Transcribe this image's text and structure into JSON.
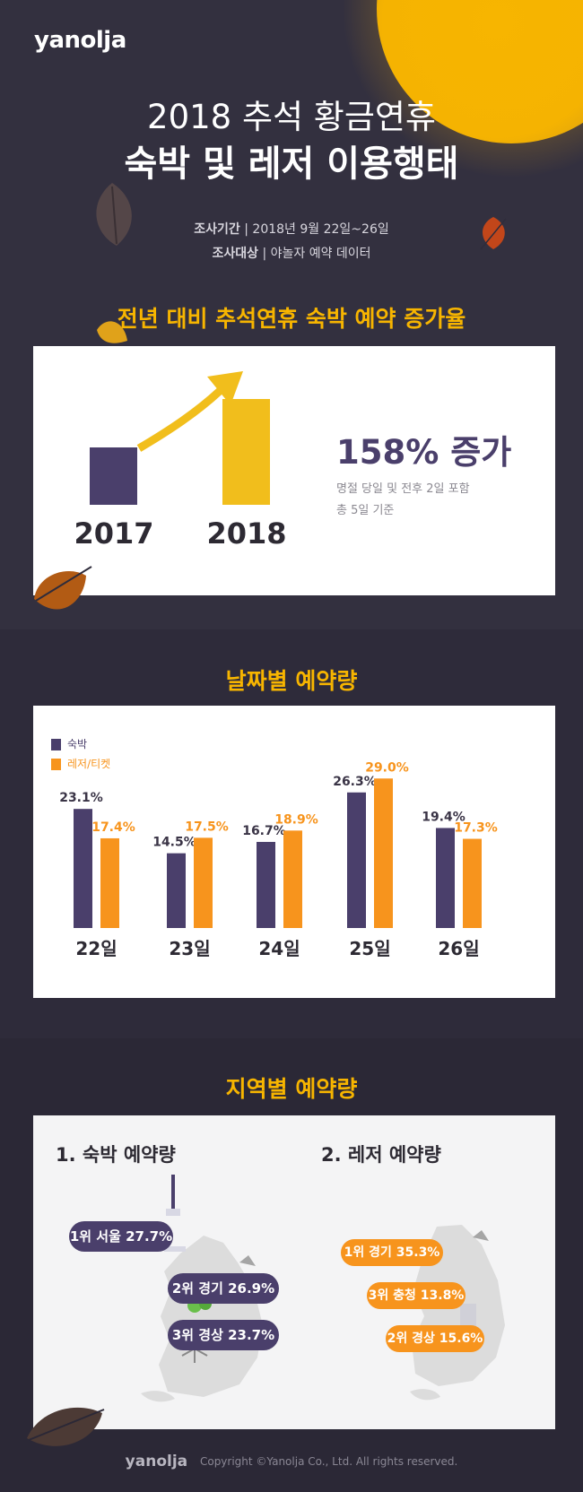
{
  "brand": {
    "logo": "yanolja"
  },
  "header": {
    "title_line1": "2018 추석 황금연휴",
    "title_line2": "숙박 및 레저 이용행태",
    "period_label": "조사기간",
    "period_value": "| 2018년 9월 22일~26일",
    "target_label": "조사대상",
    "target_value": "| 야놀자 예약 데이터"
  },
  "section1": {
    "title": "전년 대비 추석연휴 숙박 예약 증가율",
    "headline": "158% 증가",
    "note_line1": "명절 당일 및 전후 2일 포함",
    "note_line2": "총 5일 기준"
  },
  "section2": {
    "title": "날짜별 예약량"
  },
  "section3": {
    "title": "지역별 예약량",
    "stay_title": "1. 숙박 예약량",
    "leisure_title": "2. 레저 예약량",
    "stay_ranks": [
      "1위 서울 27.7%",
      "2위 경기 26.9%",
      "3위 경상 23.7%"
    ],
    "leisure_ranks": [
      "1위 경기 35.3%",
      "3위 충청 13.8%",
      "2위 경상 15.6%"
    ]
  },
  "footer": {
    "logo": "yanolja",
    "copyright": "Copyright ©Yanolja Co., Ltd. All rights reserved."
  },
  "colors": {
    "background": "#33303f",
    "accent_yellow": "#f7b500",
    "stay_purple": "#4a3f6b",
    "leisure_orange": "#f7941d",
    "bar_2018": "#f1be1c"
  },
  "chart_data": [
    {
      "type": "bar",
      "categories": [
        "2017",
        "2018"
      ],
      "values": [
        100,
        258
      ],
      "title": "전년 대비 추석연휴 숙박 예약 증가율",
      "annotation": "158% 증가"
    },
    {
      "type": "bar",
      "title": "날짜별 예약량",
      "categories": [
        "22일",
        "23일",
        "24일",
        "25일",
        "26일"
      ],
      "series": [
        {
          "name": "숙박",
          "values": [
            23.1,
            14.5,
            16.7,
            26.3,
            19.4
          ],
          "labels": [
            "23.1%",
            "14.5%",
            "16.7%",
            "26.3%",
            "19.4%"
          ],
          "color": "#4a3f6b"
        },
        {
          "name": "레저/티켓",
          "values": [
            17.4,
            17.5,
            18.9,
            29.0,
            17.3
          ],
          "labels": [
            "17.4%",
            "17.5%",
            "18.9%",
            "29.0%",
            "17.3%"
          ],
          "color": "#f7941d"
        }
      ],
      "legend_position": "top-left",
      "grid": false
    }
  ]
}
